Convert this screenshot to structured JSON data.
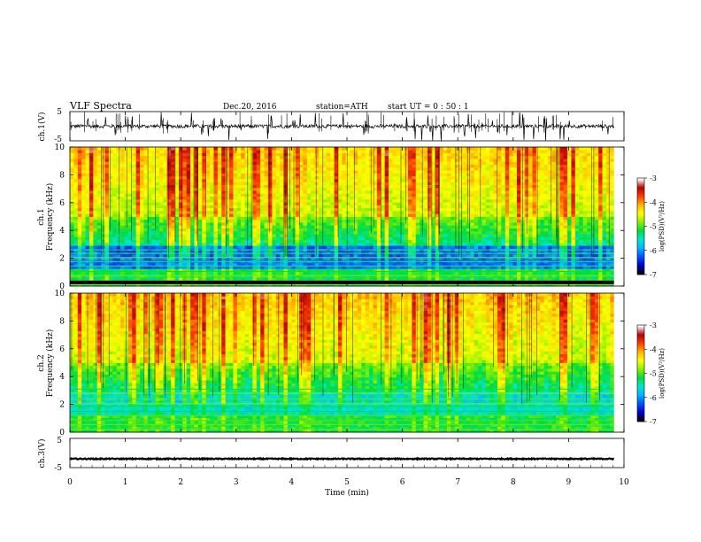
{
  "header": {
    "title": "VLF  Spectra",
    "date": "Dec.20, 2016",
    "station": "station=ATH",
    "start_ut": "start  UT  =    0  : 50 : 1"
  },
  "colors": {
    "colormap": [
      "#000000",
      "#0000c8",
      "#0050ff",
      "#00b4ff",
      "#00e6d2",
      "#00dc3c",
      "#8cf000",
      "#ffff00",
      "#ffb400",
      "#ff3c00",
      "#b40000",
      "#ffffff"
    ],
    "waveform": "#000000"
  },
  "chart_data": [
    {
      "type": "line",
      "ylabel": "ch.1(V)",
      "ylim": [
        -5,
        5
      ],
      "y_ticks": [
        "5",
        "-5"
      ],
      "baseline": 0,
      "grid": false
    },
    {
      "type": "heatmap",
      "ylabel_ch": "ch.1",
      "ylabel": "Frequency  (kHz)",
      "ylim": [
        0,
        10
      ],
      "y_ticks": [
        "10",
        "8",
        "6",
        "4",
        "2",
        "0"
      ],
      "xlim": [
        0,
        10
      ],
      "colorbar": {
        "label": "log(PSD)(V²/Hz)",
        "range": [
          -7,
          -3
        ],
        "ticks": [
          "-3",
          "-4",
          "-5",
          "-6",
          "-7"
        ]
      }
    },
    {
      "type": "heatmap",
      "ylabel_ch": "ch.2",
      "ylabel": "Frequency  (kHz)",
      "ylim": [
        0,
        10
      ],
      "y_ticks": [
        "10",
        "8",
        "6",
        "4",
        "2",
        "0"
      ],
      "xlim": [
        0,
        10
      ],
      "colorbar": {
        "label": "log(PSD)(V²/Hz)",
        "range": [
          -7,
          -3
        ],
        "ticks": [
          "-3",
          "-4",
          "-5",
          "-6",
          "-7"
        ]
      }
    },
    {
      "type": "line",
      "ylabel": "ch.3(V)",
      "ylim": [
        -5,
        5
      ],
      "y_ticks": [
        "5",
        "-5"
      ],
      "baseline": -2,
      "grid": false
    }
  ],
  "x_axis": {
    "label": "Time  (min)",
    "range": [
      0,
      10
    ],
    "ticks": [
      "0",
      "1",
      "2",
      "3",
      "4",
      "5",
      "6",
      "7",
      "8",
      "9",
      "10"
    ]
  }
}
